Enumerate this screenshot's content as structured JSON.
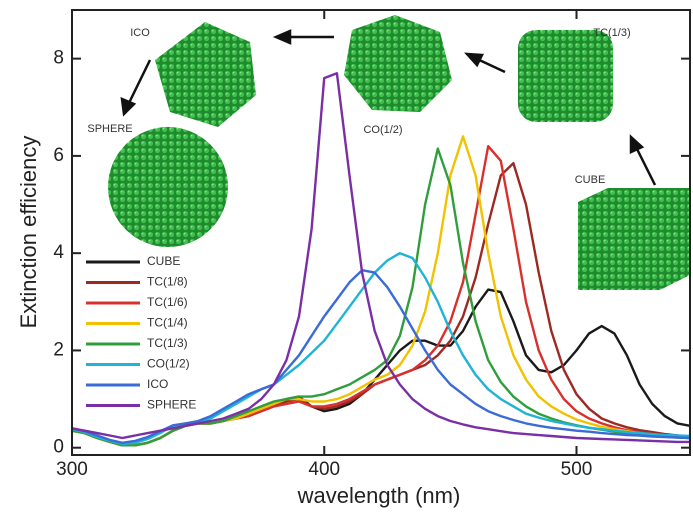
{
  "chart_data": {
    "type": "line",
    "xlabel": "wavelength (nm)",
    "ylabel": "Extinction efficiency",
    "x": [
      300,
      305,
      310,
      315,
      320,
      325,
      330,
      335,
      340,
      345,
      350,
      355,
      360,
      365,
      370,
      375,
      380,
      385,
      390,
      395,
      400,
      405,
      410,
      415,
      420,
      425,
      430,
      435,
      440,
      445,
      450,
      455,
      460,
      465,
      470,
      475,
      480,
      485,
      490,
      495,
      500,
      505,
      510,
      515,
      520,
      525,
      530,
      535,
      540,
      545
    ],
    "xlim": [
      300,
      545
    ],
    "ylim": [
      -0.15,
      9
    ],
    "xticks": [
      300,
      400,
      500
    ],
    "yticks": [
      0,
      2,
      4,
      6,
      8
    ],
    "series": [
      {
        "name": "CUBE",
        "color": "#1a1a1a",
        "values": [
          0.35,
          0.3,
          0.2,
          0.12,
          0.05,
          0.05,
          0.1,
          0.2,
          0.35,
          0.45,
          0.5,
          0.5,
          0.55,
          0.6,
          0.7,
          0.8,
          0.9,
          1.0,
          1.05,
          0.85,
          0.75,
          0.8,
          0.9,
          1.1,
          1.4,
          1.7,
          2.0,
          2.2,
          2.2,
          2.1,
          2.1,
          2.4,
          2.9,
          3.25,
          3.2,
          2.6,
          1.9,
          1.6,
          1.55,
          1.7,
          2.0,
          2.35,
          2.5,
          2.35,
          1.9,
          1.3,
          0.9,
          0.65,
          0.5,
          0.45
        ]
      },
      {
        "name": "TC(1/8)",
        "color": "#9c2a22",
        "values": [
          0.35,
          0.3,
          0.2,
          0.12,
          0.05,
          0.05,
          0.1,
          0.2,
          0.35,
          0.45,
          0.5,
          0.5,
          0.55,
          0.6,
          0.65,
          0.75,
          0.85,
          0.95,
          1.0,
          0.85,
          0.8,
          0.85,
          0.95,
          1.1,
          1.3,
          1.4,
          1.5,
          1.6,
          1.7,
          1.9,
          2.2,
          2.7,
          3.5,
          4.6,
          5.6,
          5.85,
          5.0,
          3.6,
          2.4,
          1.6,
          1.1,
          0.8,
          0.6,
          0.5,
          0.42,
          0.36,
          0.32,
          0.28,
          0.25,
          0.22
        ]
      },
      {
        "name": "TC(1/6)",
        "color": "#d8302c",
        "values": [
          0.35,
          0.3,
          0.2,
          0.12,
          0.05,
          0.05,
          0.1,
          0.2,
          0.35,
          0.45,
          0.5,
          0.5,
          0.55,
          0.6,
          0.65,
          0.75,
          0.85,
          0.9,
          0.95,
          0.85,
          0.85,
          0.9,
          1.0,
          1.15,
          1.3,
          1.4,
          1.5,
          1.6,
          1.8,
          2.1,
          2.6,
          3.4,
          4.8,
          6.2,
          5.9,
          4.5,
          3.0,
          2.0,
          1.4,
          1.0,
          0.75,
          0.6,
          0.5,
          0.42,
          0.36,
          0.32,
          0.28,
          0.25,
          0.22,
          0.2
        ]
      },
      {
        "name": "TC(1/4)",
        "color": "#f2c200",
        "values": [
          0.35,
          0.3,
          0.2,
          0.12,
          0.05,
          0.05,
          0.1,
          0.2,
          0.35,
          0.45,
          0.5,
          0.5,
          0.55,
          0.6,
          0.7,
          0.8,
          0.9,
          1.0,
          1.0,
          0.95,
          0.95,
          1.0,
          1.1,
          1.25,
          1.4,
          1.5,
          1.7,
          2.1,
          2.8,
          4.0,
          5.6,
          6.4,
          5.6,
          4.0,
          2.7,
          1.9,
          1.4,
          1.05,
          0.85,
          0.7,
          0.58,
          0.5,
          0.43,
          0.38,
          0.34,
          0.3,
          0.27,
          0.24,
          0.22,
          0.2
        ]
      },
      {
        "name": "TC(1/3)",
        "color": "#2f9e3c",
        "values": [
          0.35,
          0.3,
          0.2,
          0.12,
          0.05,
          0.05,
          0.1,
          0.2,
          0.35,
          0.45,
          0.5,
          0.5,
          0.55,
          0.65,
          0.75,
          0.85,
          0.95,
          1.0,
          1.05,
          1.05,
          1.1,
          1.2,
          1.3,
          1.45,
          1.6,
          1.8,
          2.3,
          3.3,
          5.0,
          6.15,
          5.4,
          3.8,
          2.6,
          1.8,
          1.35,
          1.05,
          0.85,
          0.7,
          0.6,
          0.52,
          0.46,
          0.41,
          0.37,
          0.33,
          0.3,
          0.27,
          0.25,
          0.23,
          0.21,
          0.2
        ]
      },
      {
        "name": "CO(1/2)",
        "color": "#1fb3d6",
        "values": [
          0.38,
          0.32,
          0.22,
          0.14,
          0.08,
          0.1,
          0.18,
          0.3,
          0.45,
          0.5,
          0.52,
          0.6,
          0.75,
          0.9,
          1.05,
          1.2,
          1.3,
          1.5,
          1.7,
          1.95,
          2.2,
          2.55,
          2.9,
          3.25,
          3.6,
          3.85,
          4.0,
          3.9,
          3.5,
          3.0,
          2.4,
          1.9,
          1.5,
          1.2,
          1.0,
          0.85,
          0.7,
          0.62,
          0.55,
          0.5,
          0.45,
          0.41,
          0.38,
          0.35,
          0.32,
          0.3,
          0.28,
          0.26,
          0.25,
          0.24
        ]
      },
      {
        "name": "ICO",
        "color": "#3a6bd6",
        "values": [
          0.4,
          0.34,
          0.25,
          0.16,
          0.1,
          0.14,
          0.22,
          0.34,
          0.46,
          0.5,
          0.55,
          0.65,
          0.8,
          0.95,
          1.1,
          1.2,
          1.3,
          1.6,
          1.9,
          2.3,
          2.7,
          3.05,
          3.4,
          3.65,
          3.6,
          3.3,
          2.9,
          2.45,
          2.0,
          1.6,
          1.3,
          1.1,
          0.9,
          0.75,
          0.65,
          0.57,
          0.5,
          0.45,
          0.41,
          0.38,
          0.35,
          0.33,
          0.3,
          0.28,
          0.26,
          0.25,
          0.23,
          0.22,
          0.21,
          0.2
        ]
      },
      {
        "name": "SPHERE",
        "color": "#7a2fa6",
        "values": [
          0.4,
          0.35,
          0.3,
          0.25,
          0.2,
          0.25,
          0.3,
          0.35,
          0.4,
          0.45,
          0.5,
          0.55,
          0.6,
          0.7,
          0.8,
          1.0,
          1.3,
          1.8,
          2.7,
          4.5,
          7.6,
          7.7,
          5.6,
          3.6,
          2.4,
          1.7,
          1.3,
          1.0,
          0.8,
          0.65,
          0.55,
          0.48,
          0.42,
          0.38,
          0.34,
          0.3,
          0.28,
          0.26,
          0.24,
          0.22,
          0.2,
          0.19,
          0.18,
          0.17,
          0.16,
          0.15,
          0.14,
          0.13,
          0.12,
          0.12
        ]
      }
    ],
    "annotations": [
      "ICO",
      "SPHERE",
      "CO(1/2)",
      "TC(1/3)",
      "CUBE"
    ]
  }
}
